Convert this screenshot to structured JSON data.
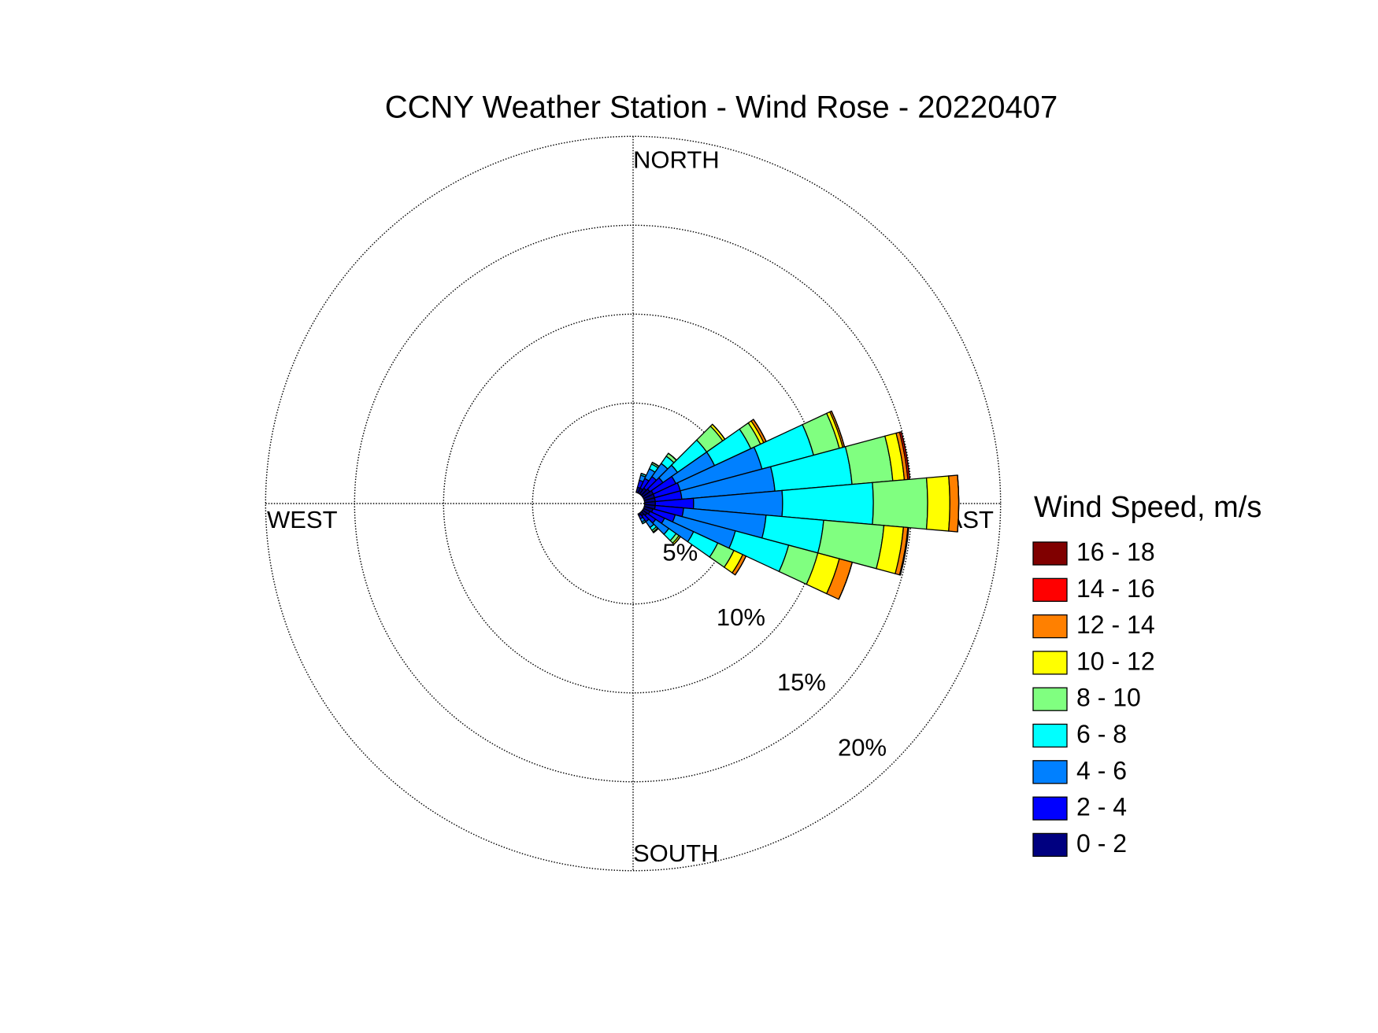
{
  "chart_data": {
    "type": "windrose",
    "title": "CCNY Weather Station - Wind Rose - 20220407",
    "direction_labels": [
      "NORTH",
      "EAST",
      "SOUTH",
      "WEST"
    ],
    "legend_title": "Wind Speed, m/s",
    "directions": [
      20,
      30,
      40,
      50,
      60,
      70,
      80,
      90,
      100,
      110,
      120,
      130,
      140,
      150
    ],
    "rlim": [
      0,
      20
    ],
    "rticks": [
      {
        "value": 5,
        "label": "5%"
      },
      {
        "value": 10,
        "label": "10%"
      },
      {
        "value": 15,
        "label": "15%"
      },
      {
        "value": 20,
        "label": "20%"
      }
    ],
    "series": [
      {
        "name": "0 - 2",
        "color": "#000080",
        "values": [
          0.3,
          0.3,
          0.4,
          0.5,
          0.6,
          0.6,
          0.6,
          0.6,
          0.6,
          0.5,
          0.4,
          0.3,
          0.2,
          0.1
        ]
      },
      {
        "name": "2 - 4",
        "color": "#0000ff",
        "values": [
          0.4,
          0.6,
          0.8,
          0.9,
          1.4,
          1.5,
          1.5,
          2.15,
          1.6,
          1.3,
          0.9,
          0.6,
          0.4,
          0.2
        ]
      },
      {
        "name": "4 - 6",
        "color": "#0080ff",
        "values": [
          0.3,
          0.6,
          0.9,
          1.0,
          2.4,
          4.75,
          5.25,
          5.0,
          4.65,
          3.5,
          1.8,
          0.9,
          0.4,
          0.2
        ]
      },
      {
        "name": "6 - 8",
        "color": "#00ffff",
        "values": [
          0.1,
          0.3,
          0.5,
          2.0,
          2.25,
          3.0,
          4.35,
          5.1,
          3.25,
          3.1,
          1.5,
          0.5,
          0.2,
          0.1
        ]
      },
      {
        "name": "8 - 10",
        "color": "#80ff80",
        "values": [
          0,
          0.1,
          0.2,
          1.1,
          0.6,
          1.5,
          2.3,
          3.05,
          3.4,
          1.7,
          1.0,
          0.2,
          0.1,
          0
        ]
      },
      {
        "name": "10 - 12",
        "color": "#ffff00",
        "values": [
          0,
          0,
          0,
          0.15,
          0.2,
          0.2,
          0.65,
          1.25,
          1.1,
          1.25,
          0.55,
          0.1,
          0.05,
          0
        ]
      },
      {
        "name": "12 - 14",
        "color": "#ff8000",
        "values": [
          0,
          0,
          0,
          0,
          0.15,
          0.1,
          0.2,
          0.5,
          0.25,
          0.75,
          0.2,
          0,
          0,
          0
        ]
      },
      {
        "name": "14 - 16",
        "color": "#ff0000",
        "values": [
          0,
          0,
          0,
          0,
          0,
          0,
          0.1,
          0,
          0.05,
          0,
          0,
          0,
          0,
          0
        ]
      },
      {
        "name": "16 - 18",
        "color": "#800000",
        "values": [
          0,
          0,
          0,
          0,
          0,
          0,
          0,
          0,
          0,
          0,
          0,
          0,
          0,
          0
        ]
      }
    ]
  }
}
